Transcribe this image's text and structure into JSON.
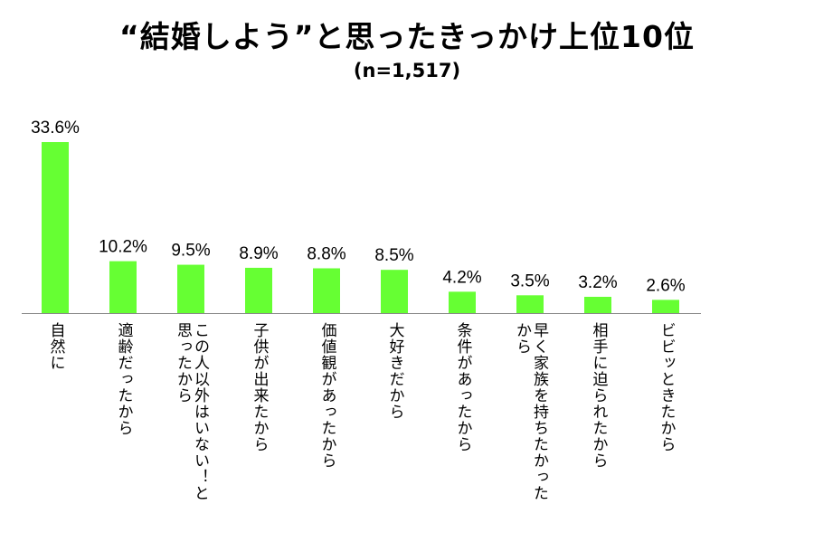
{
  "chart_data": {
    "type": "bar",
    "title": "“結婚しよう”と思ったきっかけ上位10位",
    "subtitle": "(n=1,517)",
    "categories": [
      "自然に",
      "適齢だったから",
      "この人以外はいない！と\n思ったから",
      "子供が出来たから",
      "価値観があったから",
      "大好きだから",
      "条件があったから",
      "早く家族を持ちたかった\nから",
      "相手に迫られたから",
      "ビビッときたから"
    ],
    "values": [
      33.6,
      10.2,
      9.5,
      8.9,
      8.8,
      8.5,
      4.2,
      3.5,
      3.2,
      2.6
    ],
    "value_labels": [
      "33.6%",
      "10.2%",
      "9.5%",
      "8.9%",
      "8.8%",
      "8.5%",
      "4.2%",
      "3.5%",
      "3.2%",
      "2.6%"
    ],
    "ylim": [
      0,
      33.6
    ],
    "bar_color": "#66ff33",
    "grid": false,
    "legend": "none"
  }
}
